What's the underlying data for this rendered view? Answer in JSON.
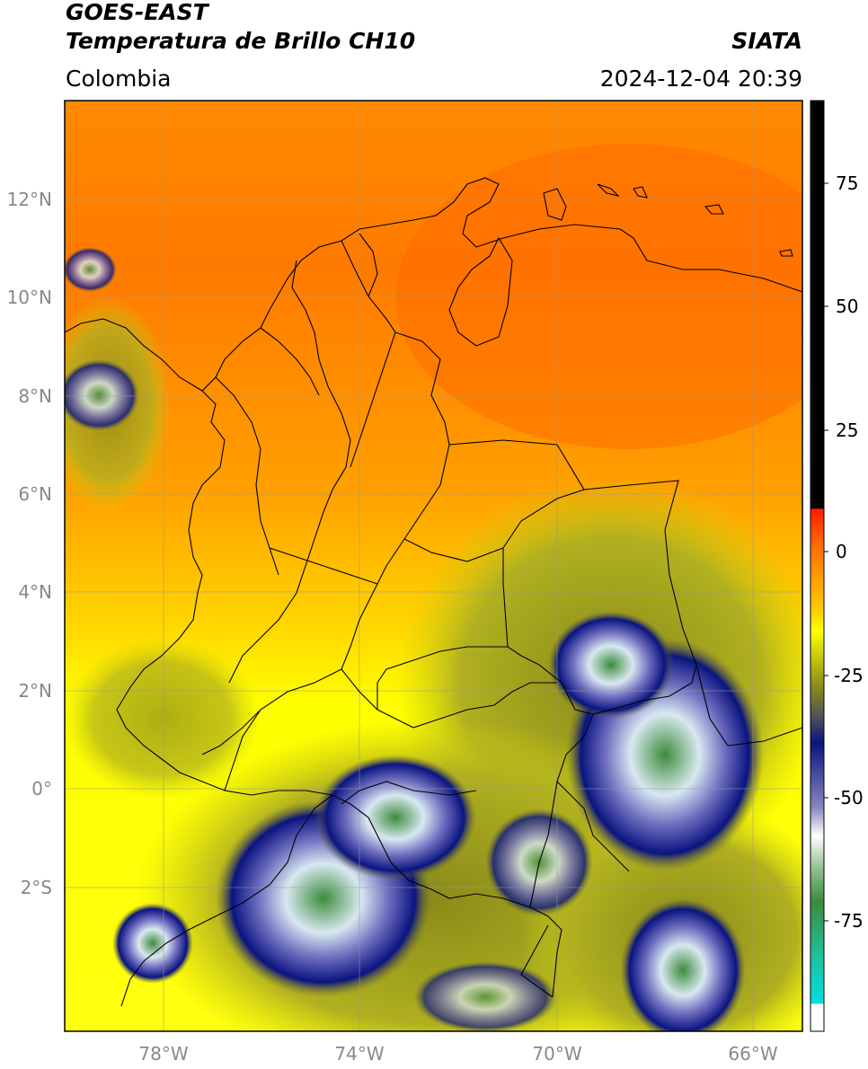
{
  "header": {
    "satellite": "GOES-EAST",
    "product": "Temperatura de Brillo CH10",
    "agency": "SIATA",
    "region": "Colombia",
    "timestamp": "2024-12-04 20:39"
  },
  "map": {
    "lon_ticks": [
      "78°W",
      "74°W",
      "70°W",
      "66°W"
    ],
    "lat_ticks": [
      "12°N",
      "10°N",
      "8°N",
      "6°N",
      "4°N",
      "2°N",
      "0°",
      "2°S"
    ]
  },
  "colorbar": {
    "ticks": [
      "75",
      "50",
      "25",
      "0",
      "-25",
      "-50",
      "-75"
    ],
    "colors": {
      "black": "#000000",
      "red": "#ff1a00",
      "orange": "#ff8000",
      "yellow": "#ffff00",
      "olive": "#8a8a1a",
      "gray": "#555555",
      "navy": "#0a1480",
      "white": "#ffffff",
      "green": "#3c8c3c",
      "teal": "#20c0a0",
      "cyan": "#00e0e0"
    }
  }
}
